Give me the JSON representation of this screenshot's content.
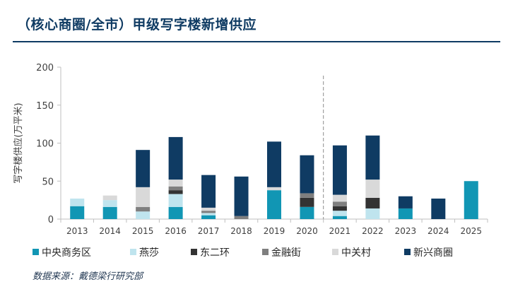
{
  "title": "（核心商圈/全市）甲级写字楼新增供应",
  "source": "数据来源：戴德梁行研究部",
  "chart_data": {
    "type": "bar",
    "stacked": true,
    "categories": [
      "2013",
      "2014",
      "2015",
      "2016",
      "2017",
      "2018",
      "2019",
      "2020",
      "2021",
      "2022",
      "2023",
      "2024",
      "2025"
    ],
    "ylabel": "写字楼供应(万平米)",
    "ylim": [
      0,
      200
    ],
    "yticks": [
      0,
      50,
      100,
      150,
      200
    ],
    "grid": false,
    "legend_position": "bottom",
    "divider_after_category": "2020",
    "series": [
      {
        "name": "中央商务区",
        "color": "#1196b4",
        "values": [
          17,
          16,
          0,
          16,
          5,
          0,
          38,
          16,
          4,
          0,
          14,
          0,
          50
        ]
      },
      {
        "name": "燕莎",
        "color": "#bfe4ee",
        "values": [
          10,
          9,
          10,
          17,
          3,
          0,
          0,
          0,
          7,
          14,
          0,
          0,
          0
        ]
      },
      {
        "name": "东二环",
        "color": "#333333",
        "values": [
          0,
          0,
          0,
          5,
          0,
          0,
          0,
          12,
          6,
          14,
          0,
          0,
          0
        ]
      },
      {
        "name": "金融街",
        "color": "#7f7f7f",
        "values": [
          0,
          0,
          6,
          5,
          3,
          4,
          0,
          6,
          6,
          0,
          0,
          0,
          0
        ]
      },
      {
        "name": "中关村",
        "color": "#d9d9d9",
        "values": [
          0,
          6,
          26,
          9,
          4,
          0,
          4,
          0,
          9,
          24,
          0,
          0,
          0
        ]
      },
      {
        "name": "新兴商圈",
        "color": "#0f3b63",
        "values": [
          0,
          0,
          49,
          56,
          43,
          52,
          60,
          50,
          65,
          58,
          16,
          27,
          0
        ]
      }
    ]
  }
}
